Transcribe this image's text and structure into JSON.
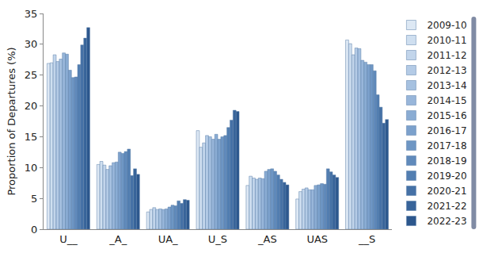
{
  "chart_data": {
    "type": "bar",
    "y_label": "Proportion of Departures (%)",
    "categories": [
      "U__",
      "_A_",
      "UA_",
      "U_S",
      "_AS",
      "UAS",
      "__S"
    ],
    "ylim": [
      0,
      35
    ],
    "yticks": [
      0,
      5,
      10,
      15,
      20,
      25,
      30,
      35
    ],
    "grid": false,
    "legend": "right",
    "series": [
      {
        "name": "2009-10",
        "color": "#dde8f4",
        "values": [
          26.9,
          10.5,
          2.8,
          16.0,
          7.1,
          4.9,
          30.7
        ]
      },
      {
        "name": "2010-11",
        "color": "#cfdff0",
        "values": [
          27.0,
          11.0,
          3.2,
          13.3,
          8.6,
          6.1,
          30.1
        ]
      },
      {
        "name": "2011-12",
        "color": "#c2d5eb",
        "values": [
          28.3,
          10.4,
          3.5,
          14.0,
          8.3,
          6.5,
          28.3
        ]
      },
      {
        "name": "2012-13",
        "color": "#b4cbe6",
        "values": [
          27.2,
          9.7,
          3.2,
          15.2,
          8.1,
          6.7,
          29.4
        ]
      },
      {
        "name": "2013-14",
        "color": "#a6c1e0",
        "values": [
          27.6,
          10.3,
          3.3,
          15.0,
          8.3,
          6.4,
          29.3
        ]
      },
      {
        "name": "2014-15",
        "color": "#98b6da",
        "values": [
          28.6,
          10.8,
          3.2,
          14.6,
          8.2,
          6.4,
          27.4
        ]
      },
      {
        "name": "2015-16",
        "color": "#8aacd3",
        "values": [
          28.4,
          10.9,
          3.3,
          15.4,
          9.4,
          7.1,
          27.1
        ]
      },
      {
        "name": "2016-17",
        "color": "#7ca1cc",
        "values": [
          25.8,
          12.5,
          3.6,
          14.6,
          9.7,
          7.2,
          26.7
        ]
      },
      {
        "name": "2017-18",
        "color": "#6e96c4",
        "values": [
          24.6,
          12.3,
          3.9,
          15.0,
          9.8,
          7.4,
          26.7
        ]
      },
      {
        "name": "2018-19",
        "color": "#608abb",
        "values": [
          24.7,
          12.6,
          3.8,
          15.2,
          9.4,
          7.3,
          25.7
        ]
      },
      {
        "name": "2019-20",
        "color": "#527eb1",
        "values": [
          26.7,
          13.0,
          4.6,
          16.5,
          8.8,
          9.8,
          21.8
        ]
      },
      {
        "name": "2020-21",
        "color": "#4571a6",
        "values": [
          29.9,
          8.7,
          4.2,
          17.7,
          8.1,
          9.3,
          19.8
        ]
      },
      {
        "name": "2021-22",
        "color": "#38649a",
        "values": [
          31.0,
          9.8,
          4.8,
          19.3,
          7.6,
          8.8,
          17.2
        ]
      },
      {
        "name": "2022-23",
        "color": "#2c578d",
        "values": [
          32.7,
          8.9,
          4.7,
          19.1,
          7.2,
          8.4,
          17.8
        ]
      }
    ]
  }
}
